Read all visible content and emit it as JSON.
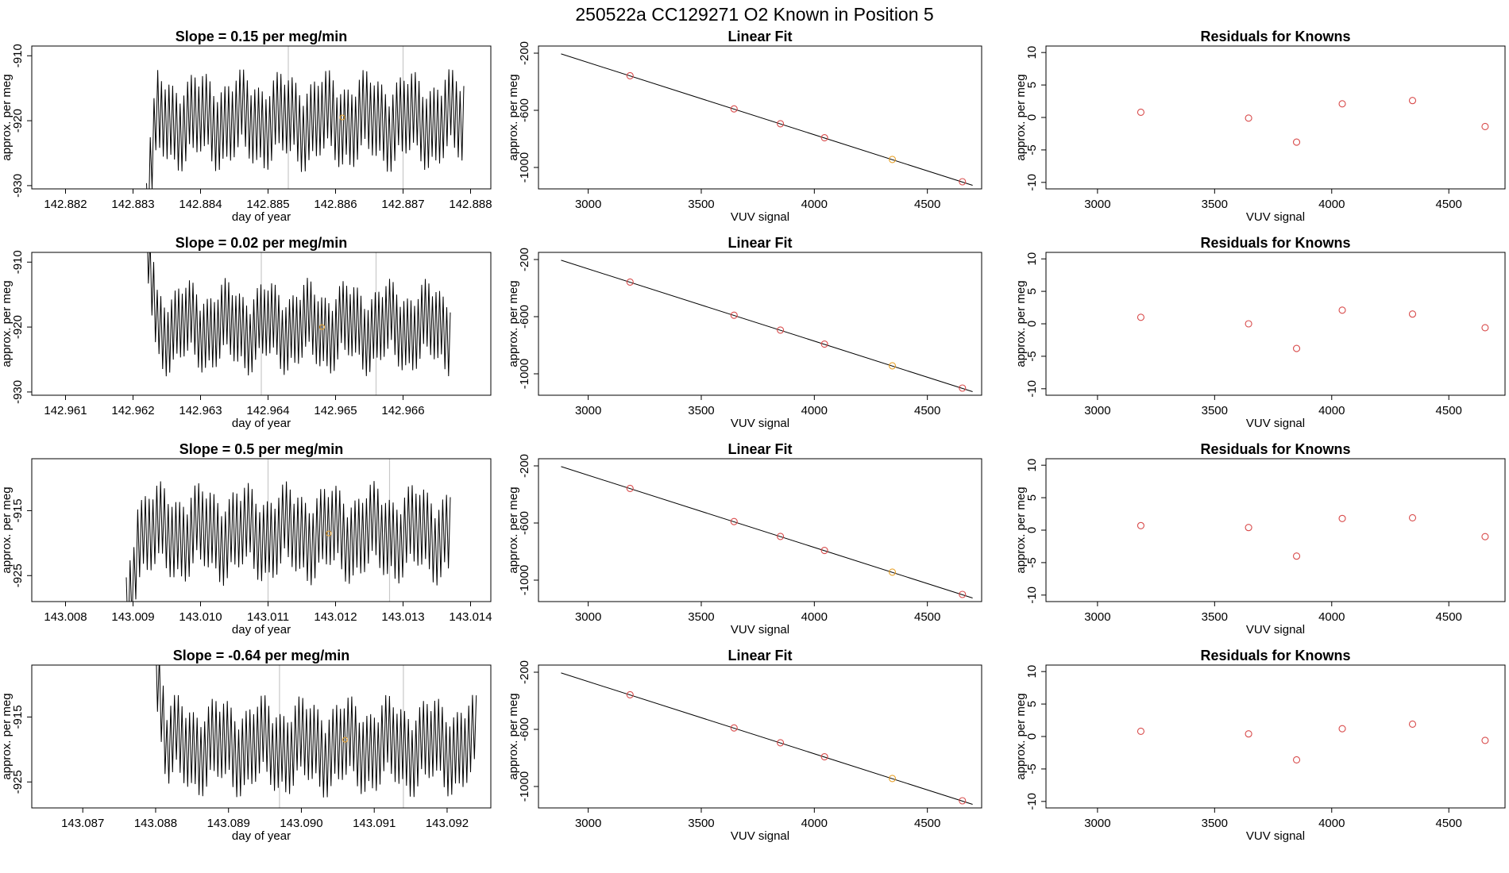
{
  "page_title": "250522a      CC129271   O2 Known in Position  5",
  "colors": {
    "trace": "#000000",
    "known": "#d84a4a",
    "highlight": "#e8a22b",
    "vline": "#c8c8c8",
    "fit": "#000000"
  },
  "chart_data": [
    {
      "type": "line",
      "title": "Slope =  0.15  per meg/min",
      "xlabel": "day of year",
      "ylabel": "approx. per meg",
      "xlim": [
        142.8815,
        142.8883
      ],
      "ylim": [
        -930.5,
        -908.5
      ],
      "xticks": [
        "142.882",
        "142.883",
        "142.884",
        "142.885",
        "142.886",
        "142.887",
        "142.888"
      ],
      "yticks": [
        "-910",
        "-920",
        "-930"
      ],
      "trace": {
        "x0": 142.8832,
        "x1": 142.8879,
        "base": -920,
        "amp": 6.5
      },
      "vlines": [
        142.8853,
        142.887
      ],
      "highlight": {
        "x": 142.8861,
        "y": -919.5
      }
    },
    {
      "type": "scatter",
      "title": "Linear Fit",
      "xlabel": "VUV signal",
      "ylabel": "approx. per meg",
      "xlim": [
        2780,
        4740
      ],
      "ylim": [
        -1150,
        -150
      ],
      "xticks": [
        "3000",
        "3500",
        "4000",
        "4500"
      ],
      "yticks": [
        "-200",
        "-600",
        "-1000"
      ],
      "line": [
        [
          2880,
          -205
        ],
        [
          4700,
          -1125
        ]
      ],
      "points": [
        [
          3185,
          -358
        ],
        [
          3645,
          -590
        ],
        [
          3850,
          -694
        ],
        [
          4045,
          -792
        ],
        [
          4345,
          -944
        ],
        [
          4655,
          -1100
        ]
      ],
      "highlight_index": 4
    },
    {
      "type": "scatter",
      "title": "Residuals for Knowns",
      "xlabel": "VUV signal",
      "ylabel": "approx. per meg",
      "xlim": [
        2780,
        4740
      ],
      "ylim": [
        -11,
        11
      ],
      "xticks": [
        "3000",
        "3500",
        "4000",
        "4500"
      ],
      "yticks": [
        "10",
        "5",
        "0",
        "-5",
        "-10"
      ],
      "points": [
        [
          3185,
          0.8
        ],
        [
          3645,
          -0.1
        ],
        [
          3850,
          -3.8
        ],
        [
          4045,
          2.1
        ],
        [
          4345,
          2.6
        ],
        [
          4655,
          -1.4
        ]
      ]
    },
    {
      "type": "line",
      "title": "Slope =  0.02  per meg/min",
      "xlabel": "day of year",
      "ylabel": "approx. per meg",
      "xlim": [
        142.9605,
        142.9673
      ],
      "ylim": [
        -930.5,
        -908.5
      ],
      "xticks": [
        "142.961",
        "142.962",
        "142.963",
        "142.964",
        "142.965",
        "142.966"
      ],
      "yticks": [
        "-910",
        "-920",
        "-930"
      ],
      "trace": {
        "x0": 142.9622,
        "x1": 142.9667,
        "base": -920,
        "amp": 6.0
      },
      "vlines": [
        142.9639,
        142.9656
      ],
      "highlight": {
        "x": 142.9648,
        "y": -920
      }
    },
    {
      "type": "scatter",
      "title": "Linear Fit",
      "xlabel": "VUV signal",
      "ylabel": "approx. per meg",
      "xlim": [
        2780,
        4740
      ],
      "ylim": [
        -1150,
        -150
      ],
      "xticks": [
        "3000",
        "3500",
        "4000",
        "4500"
      ],
      "yticks": [
        "-200",
        "-600",
        "-1000"
      ],
      "line": [
        [
          2880,
          -205
        ],
        [
          4700,
          -1125
        ]
      ],
      "points": [
        [
          3185,
          -358
        ],
        [
          3645,
          -590
        ],
        [
          3850,
          -694
        ],
        [
          4045,
          -792
        ],
        [
          4345,
          -944
        ],
        [
          4655,
          -1100
        ]
      ],
      "highlight_index": 4
    },
    {
      "type": "scatter",
      "title": "Residuals for Knowns",
      "xlabel": "VUV signal",
      "ylabel": "approx. per meg",
      "xlim": [
        2780,
        4740
      ],
      "ylim": [
        -11,
        11
      ],
      "xticks": [
        "3000",
        "3500",
        "4000",
        "4500"
      ],
      "yticks": [
        "10",
        "5",
        "0",
        "-5",
        "-10"
      ],
      "points": [
        [
          3185,
          1.0
        ],
        [
          3645,
          0.0
        ],
        [
          3850,
          -3.8
        ],
        [
          4045,
          2.1
        ],
        [
          4345,
          1.5
        ],
        [
          4655,
          -0.6
        ]
      ]
    },
    {
      "type": "line",
      "title": "Slope =  0.5  per meg/min",
      "xlabel": "day of year",
      "ylabel": "approx. per meg",
      "xlim": [
        143.0075,
        143.0143
      ],
      "ylim": [
        -929,
        -907
      ],
      "xticks": [
        "143.008",
        "143.009",
        "143.010",
        "143.011",
        "143.012",
        "143.013",
        "143.014"
      ],
      "yticks": [
        "-915",
        "-925"
      ],
      "trace": {
        "x0": 143.0089,
        "x1": 143.0137,
        "base": -918.5,
        "amp": 6.5
      },
      "vlines": [
        143.011,
        143.0128
      ],
      "highlight": {
        "x": 143.0119,
        "y": -918.5
      }
    },
    {
      "type": "scatter",
      "title": "Linear Fit",
      "xlabel": "VUV signal",
      "ylabel": "approx. per meg",
      "xlim": [
        2780,
        4740
      ],
      "ylim": [
        -1150,
        -150
      ],
      "xticks": [
        "3000",
        "3500",
        "4000",
        "4500"
      ],
      "yticks": [
        "-200",
        "-600",
        "-1000"
      ],
      "line": [
        [
          2880,
          -205
        ],
        [
          4700,
          -1125
        ]
      ],
      "points": [
        [
          3185,
          -358
        ],
        [
          3645,
          -590
        ],
        [
          3850,
          -694
        ],
        [
          4045,
          -792
        ],
        [
          4345,
          -944
        ],
        [
          4655,
          -1100
        ]
      ],
      "highlight_index": 4
    },
    {
      "type": "scatter",
      "title": "Residuals for Knowns",
      "xlabel": "VUV signal",
      "ylabel": "approx. per meg",
      "xlim": [
        2780,
        4740
      ],
      "ylim": [
        -11,
        11
      ],
      "xticks": [
        "3000",
        "3500",
        "4000",
        "4500"
      ],
      "yticks": [
        "10",
        "5",
        "0",
        "-5",
        "-10"
      ],
      "points": [
        [
          3185,
          0.7
        ],
        [
          3645,
          0.4
        ],
        [
          3850,
          -4.0
        ],
        [
          4045,
          1.8
        ],
        [
          4345,
          1.9
        ],
        [
          4655,
          -1.0
        ]
      ]
    },
    {
      "type": "line",
      "title": "Slope =  -0.64  per meg/min",
      "xlabel": "day of year",
      "ylabel": "approx. per meg",
      "xlim": [
        143.0863,
        143.0926
      ],
      "ylim": [
        -929,
        -907
      ],
      "xticks": [
        "143.087",
        "143.088",
        "143.089",
        "143.090",
        "143.091",
        "143.092"
      ],
      "yticks": [
        "-915",
        "-925"
      ],
      "trace": {
        "x0": 143.088,
        "x1": 143.0924,
        "base": -919.5,
        "amp": 6.5
      },
      "vlines": [
        143.0897,
        143.0914
      ],
      "highlight": {
        "x": 143.0906,
        "y": -918.5
      }
    },
    {
      "type": "scatter",
      "title": "Linear Fit",
      "xlabel": "VUV signal",
      "ylabel": "approx. per meg",
      "xlim": [
        2780,
        4740
      ],
      "ylim": [
        -1150,
        -150
      ],
      "xticks": [
        "3000",
        "3500",
        "4000",
        "4500"
      ],
      "yticks": [
        "-200",
        "-600",
        "-1000"
      ],
      "line": [
        [
          2880,
          -205
        ],
        [
          4700,
          -1125
        ]
      ],
      "points": [
        [
          3185,
          -358
        ],
        [
          3645,
          -590
        ],
        [
          3850,
          -694
        ],
        [
          4045,
          -792
        ],
        [
          4345,
          -944
        ],
        [
          4655,
          -1100
        ]
      ],
      "highlight_index": 4
    },
    {
      "type": "scatter",
      "title": "Residuals for Knowns",
      "xlabel": "VUV signal",
      "ylabel": "approx. per meg",
      "xlim": [
        2780,
        4740
      ],
      "ylim": [
        -11,
        11
      ],
      "xticks": [
        "3000",
        "3500",
        "4000",
        "4500"
      ],
      "yticks": [
        "10",
        "5",
        "0",
        "-5",
        "-10"
      ],
      "points": [
        [
          3185,
          0.8
        ],
        [
          3645,
          0.4
        ],
        [
          3850,
          -3.6
        ],
        [
          4045,
          1.2
        ],
        [
          4345,
          1.9
        ],
        [
          4655,
          -0.6
        ]
      ]
    }
  ]
}
